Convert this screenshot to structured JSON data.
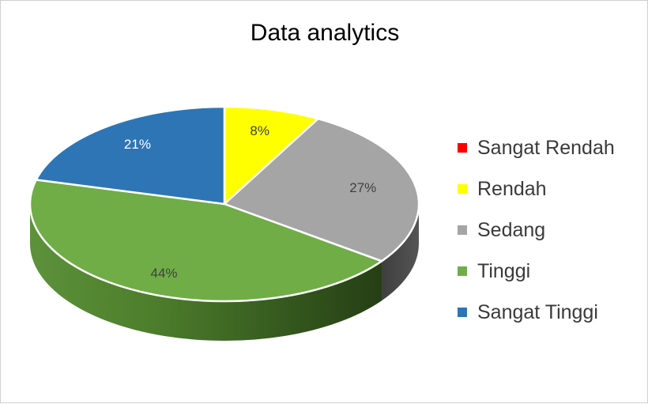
{
  "chart_data": {
    "type": "pie",
    "title": "Data analytics",
    "categories": [
      "Sangat Rendah",
      "Rendah",
      "Sedang",
      "Tinggi",
      "Sangat Tinggi"
    ],
    "values": [
      0,
      8,
      27,
      44,
      21
    ],
    "labels": [
      "",
      "8%",
      "27%",
      "44%",
      "21%"
    ],
    "colors": [
      "#ff0000",
      "#ffff00",
      "#a5a5a5",
      "#70ad47",
      "#2e75b6"
    ],
    "three_d": true,
    "legend_position": "right"
  }
}
